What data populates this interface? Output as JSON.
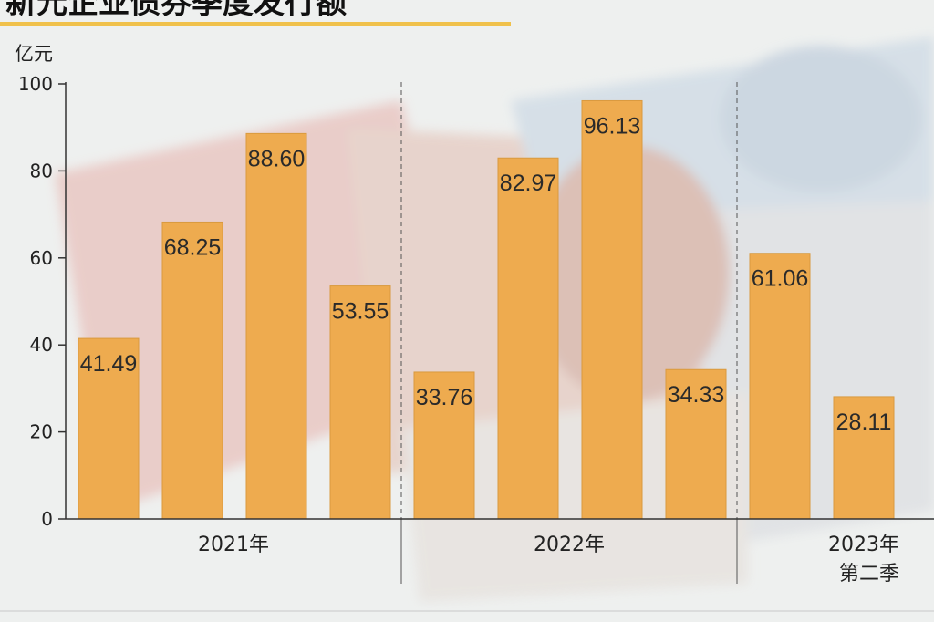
{
  "chart_data": {
    "type": "bar",
    "title": "新元企业债券季度发行额",
    "ylabel": "亿元",
    "ylim": [
      0,
      100
    ],
    "yticks": [
      0,
      20,
      40,
      60,
      80,
      100
    ],
    "groups": [
      {
        "label": "2021年",
        "values": [
          41.49,
          68.25,
          88.6,
          53.55
        ],
        "labels": [
          "41.49",
          "68.25",
          "88.60",
          "53.55"
        ]
      },
      {
        "label": "2022年",
        "values": [
          33.76,
          82.97,
          96.13,
          34.33
        ],
        "labels": [
          "33.76",
          "82.97",
          "96.13",
          "34.33"
        ]
      },
      {
        "label": "2023年",
        "sublabel": "第二季",
        "values": [
          61.06,
          28.11
        ],
        "labels": [
          "61.06",
          "28.11"
        ]
      }
    ],
    "grid": false,
    "bar_color": "#eeab4f"
  },
  "colors": {
    "bar": "#eeab4f",
    "bar_stroke": "#d99a3f",
    "axis": "#333333",
    "title_underline": "#f0c14b"
  }
}
